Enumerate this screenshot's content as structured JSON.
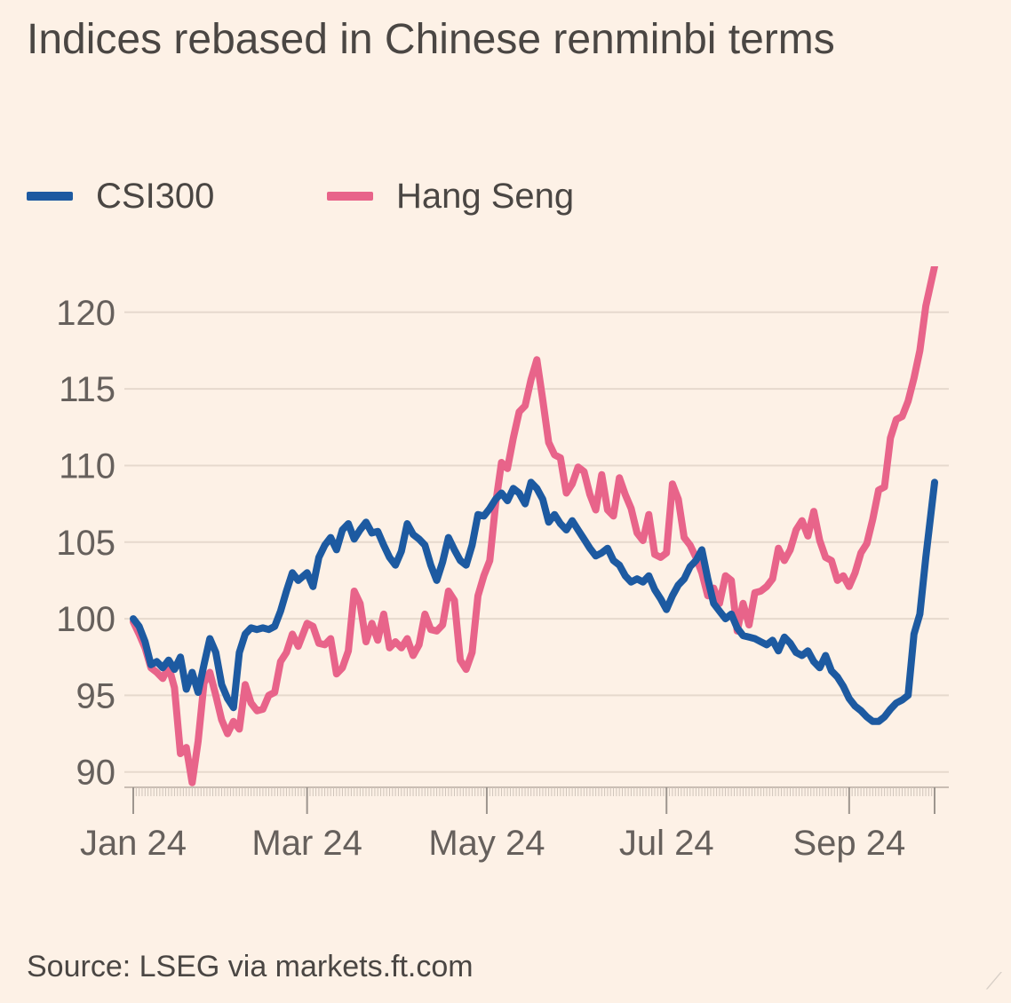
{
  "header": {
    "title": "Indices rebased in Chinese renminbi terms"
  },
  "footer": {
    "source": "Source: LSEG via markets.ft.com"
  },
  "chart_data": {
    "type": "line",
    "title": "Indices rebased in Chinese renminbi terms",
    "xlabel": "",
    "ylabel": "",
    "ylim": [
      89,
      123
    ],
    "yticks": [
      90,
      95,
      100,
      105,
      110,
      115,
      120
    ],
    "xlim": [
      "2024-01-02",
      "2024-09-30"
    ],
    "xticks": [
      {
        "label": "Jan 24",
        "date": "2024-01-02"
      },
      {
        "label": "Mar 24",
        "date": "2024-03-01"
      },
      {
        "label": "May 24",
        "date": "2024-05-01"
      },
      {
        "label": "Jul 24",
        "date": "2024-07-01"
      },
      {
        "label": "Sep 24",
        "date": "2024-09-01"
      }
    ],
    "grid": true,
    "legend_position": "top-left",
    "series": [
      {
        "name": "CSI300",
        "color": "#1d5aa1",
        "points": [
          [
            "2024-01-02",
            100
          ],
          [
            "2024-01-04",
            99.5
          ],
          [
            "2024-01-06",
            98.5
          ],
          [
            "2024-01-08",
            97
          ],
          [
            "2024-01-10",
            97.2
          ],
          [
            "2024-01-12",
            96.8
          ],
          [
            "2024-01-14",
            97.3
          ],
          [
            "2024-01-16",
            96.7
          ],
          [
            "2024-01-18",
            97.5
          ],
          [
            "2024-01-20",
            95.4
          ],
          [
            "2024-01-22",
            96.5
          ],
          [
            "2024-01-24",
            95.2
          ],
          [
            "2024-01-26",
            97
          ],
          [
            "2024-01-28",
            98.7
          ],
          [
            "2024-01-30",
            97.8
          ],
          [
            "2024-02-01",
            95.7
          ],
          [
            "2024-02-03",
            94.8
          ],
          [
            "2024-02-05",
            94.2
          ],
          [
            "2024-02-07",
            97.8
          ],
          [
            "2024-02-09",
            99
          ],
          [
            "2024-02-11",
            99.4
          ],
          [
            "2024-02-13",
            99.3
          ],
          [
            "2024-02-15",
            99.4
          ],
          [
            "2024-02-17",
            99.3
          ],
          [
            "2024-02-19",
            99.5
          ],
          [
            "2024-02-21",
            100.5
          ],
          [
            "2024-02-23",
            101.8
          ],
          [
            "2024-02-25",
            103
          ],
          [
            "2024-02-27",
            102.5
          ],
          [
            "2024-03-01",
            103
          ],
          [
            "2024-03-03",
            102.1
          ],
          [
            "2024-03-05",
            104
          ],
          [
            "2024-03-07",
            104.8
          ],
          [
            "2024-03-09",
            105.3
          ],
          [
            "2024-03-11",
            104.5
          ],
          [
            "2024-03-13",
            105.8
          ],
          [
            "2024-03-15",
            106.2
          ],
          [
            "2024-03-17",
            105.2
          ],
          [
            "2024-03-19",
            105.8
          ],
          [
            "2024-03-21",
            106.3
          ],
          [
            "2024-03-23",
            105.6
          ],
          [
            "2024-03-25",
            105.7
          ],
          [
            "2024-03-27",
            104.8
          ],
          [
            "2024-03-29",
            104
          ],
          [
            "2024-03-31",
            103.5
          ],
          [
            "2024-04-02",
            104.4
          ],
          [
            "2024-04-04",
            106.2
          ],
          [
            "2024-04-06",
            105.5
          ],
          [
            "2024-04-08",
            105.2
          ],
          [
            "2024-04-10",
            104.8
          ],
          [
            "2024-04-12",
            103.5
          ],
          [
            "2024-04-14",
            102.5
          ],
          [
            "2024-04-16",
            103.7
          ],
          [
            "2024-04-18",
            105.3
          ],
          [
            "2024-04-20",
            104.5
          ],
          [
            "2024-04-22",
            103.8
          ],
          [
            "2024-04-24",
            103.5
          ],
          [
            "2024-04-26",
            104.8
          ],
          [
            "2024-04-28",
            106.8
          ],
          [
            "2024-04-30",
            106.7
          ],
          [
            "2024-05-02",
            107.2
          ],
          [
            "2024-05-04",
            107.8
          ],
          [
            "2024-05-06",
            108.2
          ],
          [
            "2024-05-08",
            107.7
          ],
          [
            "2024-05-10",
            108.5
          ],
          [
            "2024-05-12",
            108.2
          ],
          [
            "2024-05-14",
            107.5
          ],
          [
            "2024-05-16",
            108.9
          ],
          [
            "2024-05-18",
            108.5
          ],
          [
            "2024-05-20",
            107.8
          ],
          [
            "2024-05-22",
            106.3
          ],
          [
            "2024-05-24",
            106.8
          ],
          [
            "2024-05-26",
            106.2
          ],
          [
            "2024-05-28",
            105.8
          ],
          [
            "2024-05-30",
            106.4
          ],
          [
            "2024-06-01",
            105.8
          ],
          [
            "2024-06-03",
            105.2
          ],
          [
            "2024-06-05",
            104.6
          ],
          [
            "2024-06-07",
            104.1
          ],
          [
            "2024-06-09",
            104.3
          ],
          [
            "2024-06-11",
            104.6
          ],
          [
            "2024-06-13",
            103.8
          ],
          [
            "2024-06-15",
            103.5
          ],
          [
            "2024-06-17",
            102.8
          ],
          [
            "2024-06-19",
            102.4
          ],
          [
            "2024-06-21",
            102.6
          ],
          [
            "2024-06-23",
            102.4
          ],
          [
            "2024-06-25",
            102.8
          ],
          [
            "2024-06-27",
            101.9
          ],
          [
            "2024-06-29",
            101.3
          ],
          [
            "2024-07-01",
            100.6
          ],
          [
            "2024-07-03",
            101.5
          ],
          [
            "2024-07-05",
            102.2
          ],
          [
            "2024-07-07",
            102.6
          ],
          [
            "2024-07-09",
            103.4
          ],
          [
            "2024-07-11",
            103.8
          ],
          [
            "2024-07-13",
            104.5
          ],
          [
            "2024-07-15",
            102.6
          ],
          [
            "2024-07-17",
            101
          ],
          [
            "2024-07-19",
            100.5
          ],
          [
            "2024-07-21",
            100
          ],
          [
            "2024-07-23",
            100.3
          ],
          [
            "2024-07-25",
            99.4
          ],
          [
            "2024-07-27",
            98.9
          ],
          [
            "2024-07-29",
            98.8
          ],
          [
            "2024-07-31",
            98.7
          ],
          [
            "2024-08-02",
            98.5
          ],
          [
            "2024-08-04",
            98.3
          ],
          [
            "2024-08-06",
            98.6
          ],
          [
            "2024-08-08",
            97.9
          ],
          [
            "2024-08-10",
            98.8
          ],
          [
            "2024-08-12",
            98.4
          ],
          [
            "2024-08-14",
            97.8
          ],
          [
            "2024-08-16",
            97.6
          ],
          [
            "2024-08-18",
            97.9
          ],
          [
            "2024-08-20",
            97.2
          ],
          [
            "2024-08-22",
            96.8
          ],
          [
            "2024-08-24",
            97.6
          ],
          [
            "2024-08-26",
            96.6
          ],
          [
            "2024-08-28",
            96.2
          ],
          [
            "2024-08-30",
            95.6
          ],
          [
            "2024-09-01",
            94.8
          ],
          [
            "2024-09-03",
            94.3
          ],
          [
            "2024-09-05",
            94
          ],
          [
            "2024-09-07",
            93.6
          ],
          [
            "2024-09-09",
            93.3
          ],
          [
            "2024-09-11",
            93.3
          ],
          [
            "2024-09-13",
            93.6
          ],
          [
            "2024-09-15",
            94.1
          ],
          [
            "2024-09-17",
            94.5
          ],
          [
            "2024-09-19",
            94.7
          ],
          [
            "2024-09-21",
            95
          ],
          [
            "2024-09-23",
            99
          ],
          [
            "2024-09-25",
            100.3
          ],
          [
            "2024-09-27",
            104
          ],
          [
            "2024-09-30",
            108.9
          ]
        ]
      },
      {
        "name": "Hang Seng",
        "color": "#e8648a",
        "points": [
          [
            "2024-01-02",
            99.8
          ],
          [
            "2024-01-04",
            99
          ],
          [
            "2024-01-06",
            98.1
          ],
          [
            "2024-01-08",
            96.8
          ],
          [
            "2024-01-10",
            96.5
          ],
          [
            "2024-01-12",
            96.1
          ],
          [
            "2024-01-14",
            96.9
          ],
          [
            "2024-01-16",
            95.5
          ],
          [
            "2024-01-18",
            91.2
          ],
          [
            "2024-01-20",
            91.6
          ],
          [
            "2024-01-22",
            89.3
          ],
          [
            "2024-01-24",
            92
          ],
          [
            "2024-01-26",
            95.8
          ],
          [
            "2024-01-28",
            96.5
          ],
          [
            "2024-01-30",
            95
          ],
          [
            "2024-02-01",
            93.4
          ],
          [
            "2024-02-03",
            92.5
          ],
          [
            "2024-02-05",
            93.3
          ],
          [
            "2024-02-07",
            92.8
          ],
          [
            "2024-02-09",
            95.7
          ],
          [
            "2024-02-11",
            94.5
          ],
          [
            "2024-02-13",
            94
          ],
          [
            "2024-02-15",
            94.1
          ],
          [
            "2024-02-17",
            95
          ],
          [
            "2024-02-19",
            95.2
          ],
          [
            "2024-02-21",
            97.2
          ],
          [
            "2024-02-23",
            97.8
          ],
          [
            "2024-02-25",
            99
          ],
          [
            "2024-02-27",
            98.2
          ],
          [
            "2024-03-01",
            99.7
          ],
          [
            "2024-03-03",
            99.5
          ],
          [
            "2024-03-05",
            98.4
          ],
          [
            "2024-03-07",
            98.3
          ],
          [
            "2024-03-09",
            98.7
          ],
          [
            "2024-03-11",
            96.4
          ],
          [
            "2024-03-13",
            96.8
          ],
          [
            "2024-03-15",
            97.9
          ],
          [
            "2024-03-17",
            101.8
          ],
          [
            "2024-03-19",
            101
          ],
          [
            "2024-03-21",
            98.5
          ],
          [
            "2024-03-23",
            99.7
          ],
          [
            "2024-03-25",
            98.6
          ],
          [
            "2024-03-27",
            100.3
          ],
          [
            "2024-03-29",
            98.1
          ],
          [
            "2024-03-31",
            98.5
          ],
          [
            "2024-04-02",
            98.1
          ],
          [
            "2024-04-04",
            98.7
          ],
          [
            "2024-04-06",
            97.6
          ],
          [
            "2024-04-08",
            98.3
          ],
          [
            "2024-04-10",
            100.3
          ],
          [
            "2024-04-12",
            99.3
          ],
          [
            "2024-04-14",
            99.2
          ],
          [
            "2024-04-16",
            99.6
          ],
          [
            "2024-04-18",
            101.8
          ],
          [
            "2024-04-20",
            101.2
          ],
          [
            "2024-04-22",
            97.3
          ],
          [
            "2024-04-24",
            96.7
          ],
          [
            "2024-04-26",
            97.8
          ],
          [
            "2024-04-28",
            101.5
          ],
          [
            "2024-04-30",
            102.8
          ],
          [
            "2024-05-02",
            103.8
          ],
          [
            "2024-05-04",
            107.5
          ],
          [
            "2024-05-06",
            110.2
          ],
          [
            "2024-05-08",
            109.8
          ],
          [
            "2024-05-10",
            111.8
          ],
          [
            "2024-05-12",
            113.5
          ],
          [
            "2024-05-14",
            113.9
          ],
          [
            "2024-05-16",
            115.6
          ],
          [
            "2024-05-18",
            116.9
          ],
          [
            "2024-05-20",
            114.3
          ],
          [
            "2024-05-22",
            111.5
          ],
          [
            "2024-05-24",
            110.7
          ],
          [
            "2024-05-26",
            110.5
          ],
          [
            "2024-05-28",
            108.2
          ],
          [
            "2024-05-30",
            108.8
          ],
          [
            "2024-06-01",
            109.9
          ],
          [
            "2024-06-03",
            109.6
          ],
          [
            "2024-06-05",
            108.1
          ],
          [
            "2024-06-07",
            107.1
          ],
          [
            "2024-06-09",
            109.4
          ],
          [
            "2024-06-11",
            107.1
          ],
          [
            "2024-06-13",
            106.7
          ],
          [
            "2024-06-15",
            109.2
          ],
          [
            "2024-06-17",
            108.1
          ],
          [
            "2024-06-19",
            107.2
          ],
          [
            "2024-06-21",
            105.6
          ],
          [
            "2024-06-23",
            105.1
          ],
          [
            "2024-06-25",
            106.8
          ],
          [
            "2024-06-27",
            104.2
          ],
          [
            "2024-06-29",
            104
          ],
          [
            "2024-07-01",
            104.3
          ],
          [
            "2024-07-03",
            108.8
          ],
          [
            "2024-07-05",
            107.8
          ],
          [
            "2024-07-07",
            105.3
          ],
          [
            "2024-07-09",
            104.8
          ],
          [
            "2024-07-11",
            104
          ],
          [
            "2024-07-13",
            103
          ],
          [
            "2024-07-15",
            101.5
          ],
          [
            "2024-07-17",
            102
          ],
          [
            "2024-07-19",
            101
          ],
          [
            "2024-07-21",
            102.8
          ],
          [
            "2024-07-23",
            102.5
          ],
          [
            "2024-07-25",
            99.2
          ],
          [
            "2024-07-27",
            101
          ],
          [
            "2024-07-29",
            99.6
          ],
          [
            "2024-07-31",
            101.7
          ],
          [
            "2024-08-02",
            101.8
          ],
          [
            "2024-08-04",
            102.1
          ],
          [
            "2024-08-06",
            102.6
          ],
          [
            "2024-08-08",
            104.6
          ],
          [
            "2024-08-10",
            103.8
          ],
          [
            "2024-08-12",
            104.5
          ],
          [
            "2024-08-14",
            105.8
          ],
          [
            "2024-08-16",
            106.4
          ],
          [
            "2024-08-18",
            105.4
          ],
          [
            "2024-08-20",
            107
          ],
          [
            "2024-08-22",
            105.1
          ],
          [
            "2024-08-24",
            104
          ],
          [
            "2024-08-26",
            103.8
          ],
          [
            "2024-08-28",
            102.5
          ],
          [
            "2024-08-30",
            102.8
          ],
          [
            "2024-09-01",
            102.1
          ],
          [
            "2024-09-03",
            103
          ],
          [
            "2024-09-05",
            104.3
          ],
          [
            "2024-09-07",
            104.9
          ],
          [
            "2024-09-09",
            106.5
          ],
          [
            "2024-09-11",
            108.4
          ],
          [
            "2024-09-13",
            108.6
          ],
          [
            "2024-09-15",
            111.8
          ],
          [
            "2024-09-17",
            113
          ],
          [
            "2024-09-19",
            113.2
          ],
          [
            "2024-09-21",
            114.2
          ],
          [
            "2024-09-23",
            115.7
          ],
          [
            "2024-09-25",
            117.5
          ],
          [
            "2024-09-27",
            120.4
          ],
          [
            "2024-09-30",
            123
          ]
        ]
      }
    ]
  }
}
